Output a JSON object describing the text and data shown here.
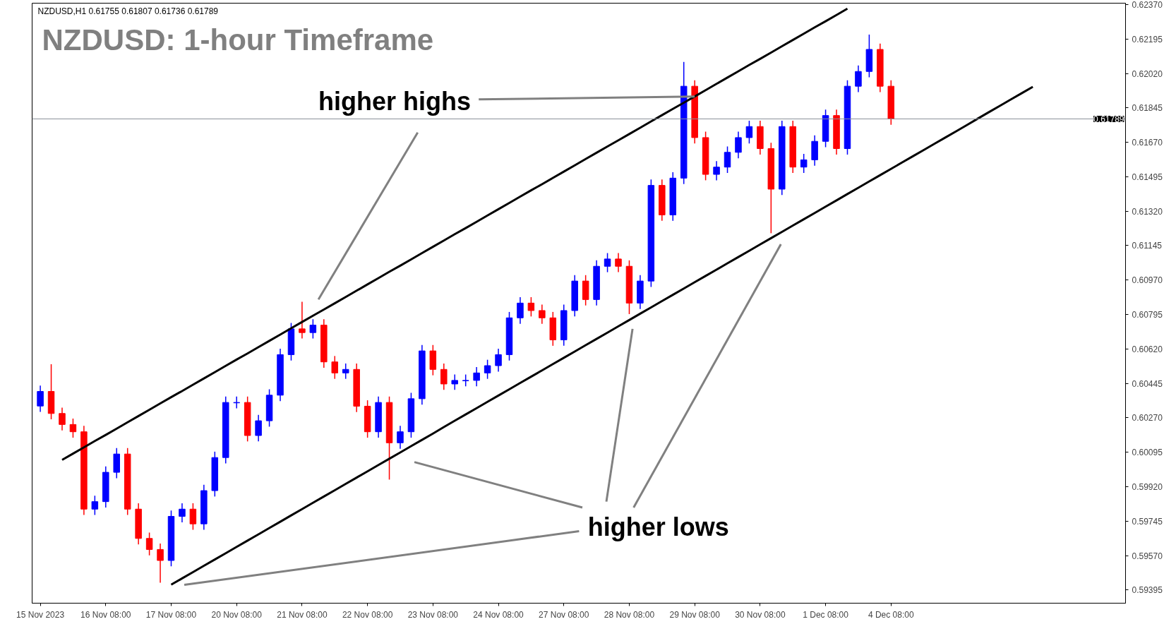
{
  "chart_data": {
    "type": "candlestick",
    "title": "NZDUSD: 1-hour Timeframe",
    "subtitle": "NZDUSD,H1  0.61755 0.61807 0.61736 0.61789",
    "annotations": [
      {
        "text": "higher highs",
        "x": "29 Nov 08:00",
        "y": 0.61903
      },
      "higher lows"
    ],
    "categories": [
      "15 Nov 2023",
      null,
      null,
      null,
      null,
      null,
      "16 Nov 08:00",
      null,
      null,
      null,
      null,
      null,
      "17 Nov 08:00",
      null,
      null,
      null,
      null,
      null,
      "20 Nov 08:00",
      null,
      null,
      null,
      null,
      null,
      "21 Nov 08:00",
      null,
      null,
      null,
      null,
      null,
      "22 Nov 08:00",
      null,
      null,
      null,
      null,
      null,
      "23 Nov 08:00",
      null,
      null,
      null,
      null,
      null,
      "24 Nov 08:00",
      null,
      null,
      null,
      null,
      null,
      "27 Nov 08:00",
      null,
      null,
      null,
      null,
      null,
      "28 Nov 08:00",
      null,
      null,
      null,
      null,
      null,
      "29 Nov 08:00",
      null,
      null,
      null,
      null,
      null,
      "30 Nov 08:00",
      null,
      null,
      null,
      null,
      null,
      "1 Dec 08:00",
      null,
      null,
      null,
      null,
      null,
      "4 Dec 08:00",
      null,
      null,
      null,
      null,
      null,
      null,
      null,
      null,
      null,
      null,
      null,
      null,
      null,
      null,
      null,
      null,
      null,
      null,
      null,
      null,
      null
    ],
    "ohlc": [
      [
        0.6033,
        0.60434,
        0.603,
        0.60404
      ],
      [
        0.60404,
        0.60542,
        0.60262,
        0.60292
      ],
      [
        0.60292,
        0.60322,
        0.60206,
        0.60236
      ],
      [
        0.60236,
        0.60266,
        0.60169,
        0.60199
      ],
      [
        0.60199,
        0.60229,
        0.59776,
        0.59806
      ],
      [
        0.59806,
        0.59874,
        0.59776,
        0.59844
      ],
      [
        0.59844,
        0.60023,
        0.59814,
        0.59993
      ],
      [
        0.59993,
        0.60116,
        0.59963,
        0.60086
      ],
      [
        0.60086,
        0.60116,
        0.59776,
        0.59806
      ],
      [
        0.59806,
        0.59836,
        0.59627,
        0.59657
      ],
      [
        0.59657,
        0.59687,
        0.59571,
        0.59601
      ],
      [
        0.59601,
        0.59631,
        0.59432,
        0.59545
      ],
      [
        0.59545,
        0.59799,
        0.59515,
        0.59769
      ],
      [
        0.59769,
        0.59836,
        0.59739,
        0.59806
      ],
      [
        0.59806,
        0.59836,
        0.59701,
        0.59731
      ],
      [
        0.59731,
        0.5993,
        0.59701,
        0.599
      ],
      [
        0.599,
        0.60098,
        0.5987,
        0.60068
      ],
      [
        0.60068,
        0.60378,
        0.60038,
        0.60348
      ],
      [
        0.60348,
        0.60378,
        0.60318,
        0.60348
      ],
      [
        0.60348,
        0.60378,
        0.6015,
        0.6018
      ],
      [
        0.6018,
        0.60285,
        0.6015,
        0.60255
      ],
      [
        0.60255,
        0.60415,
        0.60225,
        0.60385
      ],
      [
        0.60385,
        0.60621,
        0.60355,
        0.60591
      ],
      [
        0.60591,
        0.60752,
        0.60561,
        0.60722
      ],
      [
        0.60722,
        0.6086,
        0.60673,
        0.60703
      ],
      [
        0.60703,
        0.60771,
        0.60673,
        0.60741
      ],
      [
        0.60741,
        0.60771,
        0.60524,
        0.60554
      ],
      [
        0.60554,
        0.60584,
        0.60468,
        0.60498
      ],
      [
        0.60498,
        0.60546,
        0.60468,
        0.60516
      ],
      [
        0.60516,
        0.60546,
        0.60299,
        0.60329
      ],
      [
        0.60329,
        0.60359,
        0.60169,
        0.60199
      ],
      [
        0.60199,
        0.60378,
        0.60169,
        0.60348
      ],
      [
        0.60348,
        0.60378,
        0.59956,
        0.60143
      ],
      [
        0.60143,
        0.60229,
        0.60113,
        0.60199
      ],
      [
        0.60199,
        0.60397,
        0.60169,
        0.60367
      ],
      [
        0.60367,
        0.6064,
        0.60337,
        0.6061
      ],
      [
        0.6061,
        0.6064,
        0.60486,
        0.60516
      ],
      [
        0.60516,
        0.60546,
        0.60412,
        0.60442
      ],
      [
        0.60442,
        0.6049,
        0.60412,
        0.6046
      ],
      [
        0.6046,
        0.6049,
        0.6043,
        0.6046
      ],
      [
        0.6046,
        0.60528,
        0.6043,
        0.60498
      ],
      [
        0.60498,
        0.60565,
        0.60468,
        0.60535
      ],
      [
        0.60535,
        0.60621,
        0.60505,
        0.60591
      ],
      [
        0.60591,
        0.60808,
        0.60561,
        0.60778
      ],
      [
        0.60778,
        0.60883,
        0.60748,
        0.60853
      ],
      [
        0.60853,
        0.60883,
        0.60785,
        0.60815
      ],
      [
        0.60815,
        0.60845,
        0.60748,
        0.60778
      ],
      [
        0.60778,
        0.60808,
        0.60636,
        0.60666
      ],
      [
        0.60666,
        0.60845,
        0.60636,
        0.60815
      ],
      [
        0.60815,
        0.60995,
        0.60785,
        0.60965
      ],
      [
        0.60965,
        0.60995,
        0.60841,
        0.60871
      ],
      [
        0.60871,
        0.6107,
        0.60841,
        0.6104
      ],
      [
        0.6104,
        0.61107,
        0.6101,
        0.61077
      ],
      [
        0.61077,
        0.61107,
        0.6101,
        0.6104
      ],
      [
        0.6104,
        0.6107,
        0.60797,
        0.60853
      ],
      [
        0.60853,
        0.60995,
        0.60823,
        0.60965
      ],
      [
        0.60965,
        0.61481,
        0.60935,
        0.61451
      ],
      [
        0.61451,
        0.61481,
        0.61271,
        0.61301
      ],
      [
        0.61301,
        0.61518,
        0.61271,
        0.61488
      ],
      [
        0.61488,
        0.62078,
        0.61458,
        0.61955
      ],
      [
        0.61955,
        0.61985,
        0.61664,
        0.61694
      ],
      [
        0.61694,
        0.61724,
        0.61477,
        0.61507
      ],
      [
        0.61507,
        0.61574,
        0.61477,
        0.61544
      ],
      [
        0.61544,
        0.61649,
        0.61514,
        0.61619
      ],
      [
        0.61619,
        0.61724,
        0.61589,
        0.61694
      ],
      [
        0.61694,
        0.6178,
        0.61664,
        0.6175
      ],
      [
        0.6175,
        0.6178,
        0.61608,
        0.61638
      ],
      [
        0.61638,
        0.61668,
        0.61208,
        0.61432
      ],
      [
        0.61432,
        0.6178,
        0.61402,
        0.6175
      ],
      [
        0.6175,
        0.6178,
        0.61514,
        0.61544
      ],
      [
        0.61544,
        0.61611,
        0.61514,
        0.61581
      ],
      [
        0.61581,
        0.61705,
        0.61551,
        0.61675
      ],
      [
        0.61675,
        0.61836,
        0.61645,
        0.61806
      ],
      [
        0.61806,
        0.61836,
        0.61608,
        0.61638
      ],
      [
        0.61638,
        0.61985,
        0.61608,
        0.61955
      ],
      [
        0.61955,
        0.6206,
        0.61925,
        0.6203
      ],
      [
        0.6203,
        0.62217,
        0.62,
        0.62142
      ],
      [
        0.62142,
        0.62172,
        0.61925,
        0.61955
      ],
      [
        0.61955,
        0.61985,
        0.61759,
        0.61789
      ],
      null,
      null,
      null,
      null,
      null,
      null,
      null,
      null,
      null,
      null,
      null,
      null,
      null,
      null,
      null,
      null,
      null,
      null,
      null,
      null,
      null
    ],
    "colors": [
      "#0000ff",
      "#ff0000",
      "#ff0000",
      "#ff0000",
      "#ff0000",
      "#0000ff",
      "#0000ff",
      "#0000ff",
      "#ff0000",
      "#ff0000",
      "#ff0000",
      "#ff0000",
      "#0000ff",
      "#0000ff",
      "#ff0000",
      "#0000ff",
      "#0000ff",
      "#0000ff",
      "#0000ff",
      "#ff0000",
      "#0000ff",
      "#0000ff",
      "#0000ff",
      "#0000ff",
      "#ff0000",
      "#0000ff",
      "#ff0000",
      "#ff0000",
      "#0000ff",
      "#ff0000",
      "#ff0000",
      "#0000ff",
      "#ff0000",
      "#0000ff",
      "#0000ff",
      "#0000ff",
      "#ff0000",
      "#ff0000",
      "#0000ff",
      "#0000ff",
      "#0000ff",
      "#0000ff",
      "#0000ff",
      "#0000ff",
      "#0000ff",
      "#ff0000",
      "#ff0000",
      "#ff0000",
      "#0000ff",
      "#0000ff",
      "#ff0000",
      "#0000ff",
      "#0000ff",
      "#ff0000",
      "#ff0000",
      "#0000ff",
      "#0000ff",
      "#ff0000",
      "#0000ff",
      "#0000ff",
      "#ff0000",
      "#ff0000",
      "#0000ff",
      "#0000ff",
      "#0000ff",
      "#0000ff",
      "#ff0000",
      "#ff0000",
      "#0000ff",
      "#ff0000",
      "#0000ff",
      "#0000ff",
      "#0000ff",
      "#ff0000",
      "#0000ff",
      "#0000ff",
      "#0000ff",
      "#ff0000",
      "#ff0000",
      null,
      null,
      null,
      null,
      null,
      null,
      null,
      null,
      null,
      null,
      null,
      null,
      null,
      null,
      null,
      null,
      null,
      null,
      null,
      null,
      null
    ],
    "series": [
      {
        "type": "line",
        "color": "#000000",
        "values": [
          null,
          null,
          0.60056,
          0.60088,
          0.6012,
          0.60152,
          0.60183,
          0.60215,
          0.60247,
          0.60279,
          0.60311,
          0.60343,
          0.60375,
          0.60406,
          0.60438,
          0.6047,
          0.60502,
          0.60534,
          0.60566,
          0.60597,
          0.60629,
          0.60661,
          0.60693,
          0.60725,
          0.60757,
          0.60789,
          0.6082,
          0.60852,
          0.60884,
          0.60916,
          0.60948,
          0.6098,
          0.61012,
          0.61043,
          0.61075,
          0.61107,
          0.61139,
          0.61171,
          0.61203,
          0.61234,
          0.61266,
          0.61298,
          0.6133,
          0.61362,
          0.61394,
          0.61426,
          0.61457,
          0.61489,
          0.61521,
          0.61553,
          0.61585,
          0.61617,
          0.61649,
          0.6168,
          0.61712,
          0.61744,
          0.61776,
          0.61808,
          0.6184,
          0.61871,
          0.61903,
          0.61935,
          0.61967,
          0.61999,
          0.62031,
          0.62063,
          0.62094,
          0.62126,
          0.62158,
          0.6219,
          0.62222,
          0.62254,
          0.62285,
          0.62317,
          0.62349,
          null,
          null,
          null,
          null,
          null,
          null,
          null,
          null,
          null,
          null,
          null,
          null,
          null,
          null,
          null,
          null,
          null,
          null,
          null,
          null,
          null,
          null,
          null,
          null,
          null
        ]
      },
      {
        "type": "line",
        "color": "#000000",
        "values": [
          null,
          null,
          null,
          null,
          null,
          null,
          null,
          null,
          null,
          null,
          null,
          null,
          0.59422,
          0.59454,
          0.59486,
          0.59518,
          0.5955,
          0.59582,
          0.59614,
          0.59646,
          0.59678,
          0.5971,
          0.59742,
          0.59774,
          0.59806,
          0.59838,
          0.5987,
          0.59902,
          0.59934,
          0.59966,
          0.59998,
          0.6003,
          0.60062,
          0.60094,
          0.60126,
          0.60158,
          0.6019,
          0.60223,
          0.60255,
          0.60287,
          0.60319,
          0.60351,
          0.60383,
          0.60415,
          0.60447,
          0.60479,
          0.60511,
          0.60543,
          0.60575,
          0.60607,
          0.60639,
          0.60671,
          0.60703,
          0.60735,
          0.60767,
          0.60799,
          0.60831,
          0.60863,
          0.60895,
          0.60927,
          0.60959,
          0.60991,
          0.61023,
          0.61055,
          0.61087,
          0.61119,
          0.61151,
          0.61183,
          0.61215,
          0.61247,
          0.61279,
          0.61311,
          0.61343,
          0.61375,
          0.61407,
          0.61439,
          0.61471,
          0.61503,
          0.61535,
          0.61567,
          0.61599,
          0.61631,
          0.61663,
          0.61695,
          0.61727,
          0.61759,
          0.61792,
          0.61824,
          0.61856,
          0.61888,
          0.6192,
          0.61952,
          null,
          null,
          null,
          null,
          null,
          null,
          null,
          null
        ]
      }
    ],
    "ref_lines": [
      {
        "axis": "y",
        "value": 0.61789,
        "label": "0.61789",
        "color": "#8a8f99"
      }
    ],
    "ylim": [
      0.59328,
      0.62377
    ],
    "yticks": [
      0.59395,
      {
        "value": 0.5957,
        "label": "0.59570"
      },
      0.59745,
      {
        "value": 0.5992,
        "label": "0.59920"
      },
      0.60095,
      {
        "value": 0.6027,
        "label": "0.60270"
      },
      0.60445,
      {
        "value": 0.6062,
        "label": "0.60620"
      },
      0.60795,
      {
        "value": 0.6097,
        "label": "0.60970"
      },
      0.61145,
      {
        "value": 0.6132,
        "label": "0.61320"
      },
      0.61495,
      {
        "value": 0.6167,
        "label": "0.61670"
      },
      0.61845,
      {
        "value": 0.6202,
        "label": "0.62020"
      },
      0.62195,
      {
        "value": 0.6237,
        "label": "0.62370"
      }
    ],
    "grid": false
  }
}
